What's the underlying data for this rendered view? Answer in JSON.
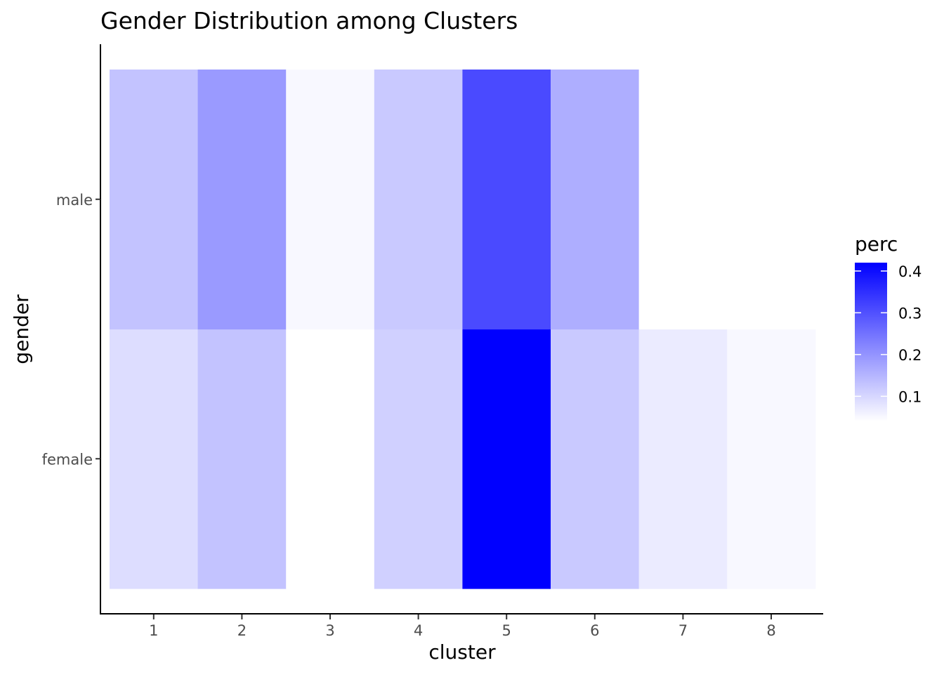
{
  "chart_data": {
    "type": "heatmap",
    "title": "Gender Distribution among Clusters",
    "xlabel": "cluster",
    "ylabel": "gender",
    "x_categories": [
      "1",
      "2",
      "3",
      "4",
      "5",
      "6",
      "7",
      "8"
    ],
    "y_categories": [
      "female",
      "male"
    ],
    "values": {
      "male": [
        0.13,
        0.19,
        0.05,
        0.12,
        0.31,
        0.16,
        0.04,
        0.04
      ],
      "female": [
        0.09,
        0.13,
        null,
        0.11,
        0.42,
        0.12,
        0.07,
        0.05
      ]
    },
    "color_scale": {
      "title": "perc",
      "low_color": "#ffffff",
      "high_color": "#0000ff",
      "domain": [
        0.04,
        0.42
      ],
      "breaks": [
        0.1,
        0.2,
        0.3,
        0.4
      ],
      "break_labels": [
        "0.1",
        "0.2",
        "0.3",
        "0.4"
      ]
    },
    "legend_position": "right",
    "grid": false,
    "missing_color": "#ffffff"
  }
}
